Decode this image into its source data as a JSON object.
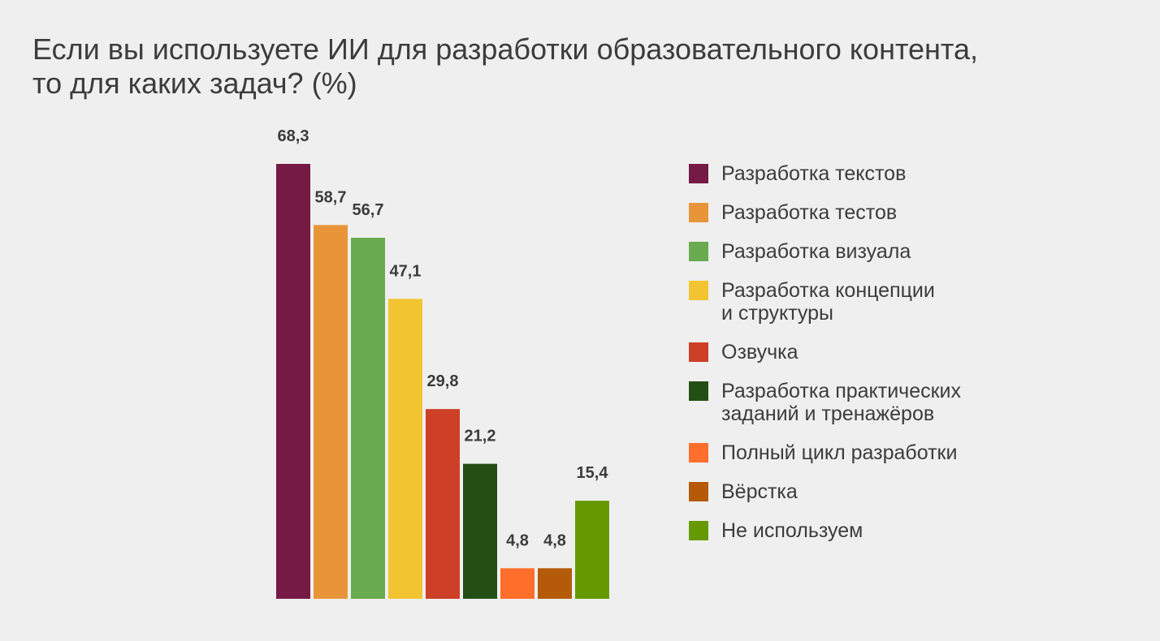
{
  "chart_data": {
    "type": "bar",
    "title": "Если вы используете ИИ для разработки образовательного контента,\nто для каких задач? (%)",
    "xlabel": "",
    "ylabel": "",
    "ylim": [
      0,
      70
    ],
    "grid": false,
    "legend_position": "right",
    "series": [
      {
        "name": "Разработка текстов",
        "label": "68,3",
        "value": 68.3,
        "color": "#751a45"
      },
      {
        "name": "Разработка тестов",
        "label": "58,7",
        "value": 58.7,
        "color": "#e8953a"
      },
      {
        "name": "Разработка визуала",
        "label": "56,7",
        "value": 56.7,
        "color": "#6aaa50"
      },
      {
        "name": "Разработка концепции\nи структуры",
        "label": "47,1",
        "value": 47.1,
        "color": "#f2c431"
      },
      {
        "name": "Озвучка",
        "label": "29,8",
        "value": 29.8,
        "color": "#cd4027"
      },
      {
        "name": "Разработка практических\nзаданий и тренажёров",
        "label": "21,2",
        "value": 21.2,
        "color": "#244f14"
      },
      {
        "name": "Полный цикл разработки",
        "label": "4,8",
        "value": 4.8,
        "color": "#ff6e2b"
      },
      {
        "name": "Вёрстка",
        "label": "4,8",
        "value": 4.8,
        "color": "#b55a08"
      },
      {
        "name": "Не используем",
        "label": "15,4",
        "value": 15.4,
        "color": "#669900"
      }
    ]
  }
}
